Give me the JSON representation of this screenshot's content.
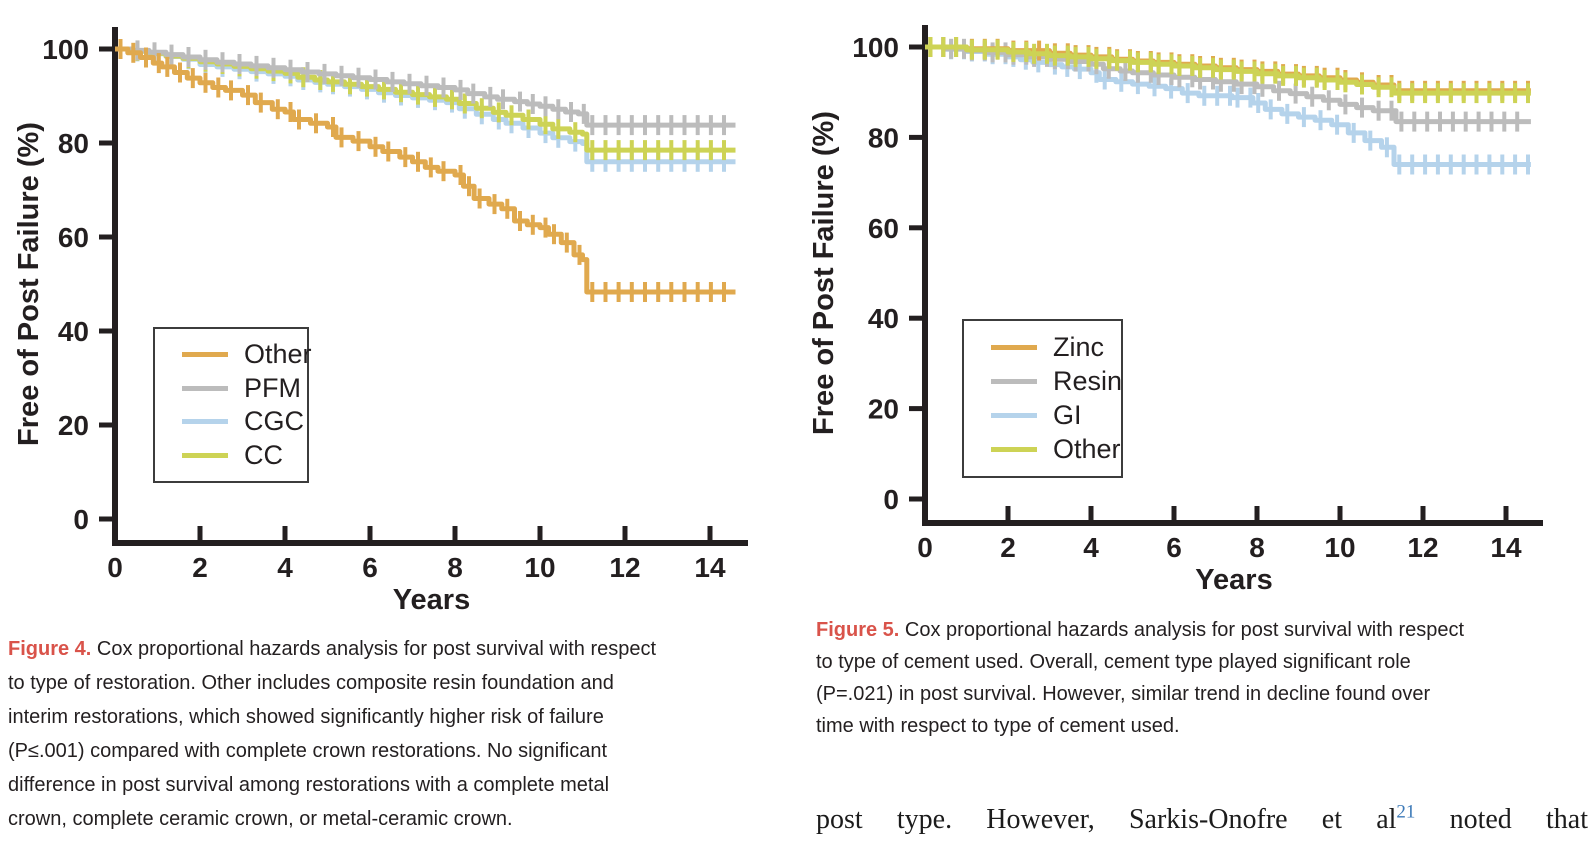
{
  "article": {
    "body_before": "post type. However, Sarkis-Onofre et al",
    "reference_superscript": "21",
    "body_after": " noted that",
    "reference_color": "#3d7ab8"
  },
  "figure4": {
    "caption_label": "Figure 4.",
    "caption_label_color": "#d9534a",
    "caption_lines": [
      " Cox proportional hazards analysis for post survival with respect",
      "to type of restoration. Other includes composite resin foundation and",
      "interim restorations, which showed significantly higher risk of failure",
      "(P≤.001) compared with complete crown restorations. No significant",
      "difference in post survival among restorations with a complete metal",
      "crown, complete ceramic crown, or metal-ceramic crown."
    ]
  },
  "figure5": {
    "caption_label": "Figure 5.",
    "caption_label_color": "#d9534a",
    "caption_lines": [
      " Cox proportional hazards analysis for post survival with respect",
      "to type of cement used. Overall, cement type played significant role",
      "(P=.021) in post survival. However, similar trend in decline found over",
      "time with respect to type of cement used."
    ]
  },
  "chart_data": [
    {
      "type": "line",
      "variant": "kaplan-meier-step-with-censor-marks",
      "figure": "Figure 4",
      "title": "",
      "xlabel": "Years",
      "ylabel": "Free of Post Failure (%)",
      "xticks": [
        0,
        2,
        4,
        6,
        8,
        10,
        12,
        14
      ],
      "yticks": [
        0,
        20,
        40,
        60,
        80,
        100
      ],
      "xlim": [
        0,
        14.8
      ],
      "ylim": [
        0,
        104
      ],
      "grid": false,
      "legend_position": "lower-left-inside",
      "series": [
        {
          "name": "Other",
          "color": "#e0a94e",
          "end_value": 48.3,
          "points": [
            [
              0,
              100
            ],
            [
              0.3,
              99.2
            ],
            [
              0.6,
              98.2
            ],
            [
              0.9,
              97
            ],
            [
              1.1,
              96.2
            ],
            [
              1.4,
              95
            ],
            [
              1.7,
              93.8
            ],
            [
              2,
              92.8
            ],
            [
              2.3,
              91.8
            ],
            [
              2.6,
              91.2
            ],
            [
              3,
              90.2
            ],
            [
              3.3,
              88.6
            ],
            [
              3.7,
              87.2
            ],
            [
              4,
              86.6
            ],
            [
              4.2,
              85
            ],
            [
              4.6,
              84.2
            ],
            [
              5,
              83.4
            ],
            [
              5.2,
              81.2
            ],
            [
              5.6,
              80.4
            ],
            [
              6,
              79.2
            ],
            [
              6.3,
              78.2
            ],
            [
              6.7,
              77
            ],
            [
              7,
              76
            ],
            [
              7.3,
              74.8
            ],
            [
              7.6,
              74
            ],
            [
              8,
              73.2
            ],
            [
              8.2,
              70.8
            ],
            [
              8.45,
              68.2
            ],
            [
              8.8,
              67
            ],
            [
              9.1,
              66
            ],
            [
              9.4,
              63.4
            ],
            [
              9.7,
              62.6
            ],
            [
              10,
              62
            ],
            [
              10.2,
              60.6
            ],
            [
              10.5,
              58.8
            ],
            [
              10.8,
              56.2
            ],
            [
              11,
              55.2
            ],
            [
              11.1,
              48.3
            ],
            [
              14.6,
              48.3
            ]
          ]
        },
        {
          "name": "PFM",
          "color": "#bcbcbc",
          "end_value": 83.8,
          "points": [
            [
              0,
              100
            ],
            [
              0.4,
              99.7
            ],
            [
              0.8,
              99.3
            ],
            [
              1.2,
              98.8
            ],
            [
              1.6,
              98.3
            ],
            [
              2,
              97.7
            ],
            [
              2.4,
              97.2
            ],
            [
              2.8,
              96.8
            ],
            [
              3.2,
              96.4
            ],
            [
              3.6,
              96
            ],
            [
              4,
              95.6
            ],
            [
              4.4,
              95.1
            ],
            [
              4.8,
              94.7
            ],
            [
              5.2,
              94.3
            ],
            [
              5.6,
              93.9
            ],
            [
              6,
              93.5
            ],
            [
              6.4,
              93
            ],
            [
              6.8,
              92.6
            ],
            [
              7.2,
              92.2
            ],
            [
              7.6,
              91.8
            ],
            [
              8,
              91.3
            ],
            [
              8.3,
              90.5
            ],
            [
              8.7,
              89.8
            ],
            [
              9,
              89.3
            ],
            [
              9.4,
              88.8
            ],
            [
              9.7,
              88.3
            ],
            [
              10,
              87.8
            ],
            [
              10.3,
              87.2
            ],
            [
              10.6,
              86.6
            ],
            [
              10.9,
              86.2
            ],
            [
              11.1,
              83.8
            ],
            [
              14.6,
              83.8
            ]
          ]
        },
        {
          "name": "CGC",
          "color": "#b5d3eb",
          "end_value": 76,
          "points": [
            [
              0,
              100
            ],
            [
              0.4,
              99.5
            ],
            [
              0.8,
              99
            ],
            [
              1.2,
              98.4
            ],
            [
              1.6,
              97.8
            ],
            [
              2,
              96.7
            ],
            [
              2.4,
              96.2
            ],
            [
              2.8,
              95.7
            ],
            [
              3.2,
              95.2
            ],
            [
              3.6,
              94.7
            ],
            [
              4,
              94.2
            ],
            [
              4.3,
              93.4
            ],
            [
              4.7,
              92.9
            ],
            [
              5,
              92.5
            ],
            [
              5.4,
              92
            ],
            [
              5.8,
              91.4
            ],
            [
              6.2,
              90.7
            ],
            [
              6.6,
              90.1
            ],
            [
              7,
              89.6
            ],
            [
              7.4,
              89.1
            ],
            [
              7.8,
              88.6
            ],
            [
              8.1,
              87.3
            ],
            [
              8.5,
              86.1
            ],
            [
              8.9,
              85
            ],
            [
              9.2,
              84.2
            ],
            [
              9.6,
              83.2
            ],
            [
              10,
              82.1
            ],
            [
              10.3,
              81.1
            ],
            [
              10.7,
              80.3
            ],
            [
              11,
              79.9
            ],
            [
              11.1,
              76
            ],
            [
              14.6,
              76
            ]
          ]
        },
        {
          "name": "CC",
          "color": "#cdd355",
          "end_value": 78.5,
          "points": [
            [
              0,
              100
            ],
            [
              0.4,
              99.6
            ],
            [
              0.8,
              99.1
            ],
            [
              1.2,
              98.5
            ],
            [
              1.6,
              98
            ],
            [
              2,
              97.3
            ],
            [
              2.4,
              96.8
            ],
            [
              2.8,
              96.3
            ],
            [
              3.2,
              95.8
            ],
            [
              3.6,
              95.3
            ],
            [
              4,
              94.8
            ],
            [
              4.3,
              94
            ],
            [
              4.7,
              93.4
            ],
            [
              5,
              93
            ],
            [
              5.4,
              92.5
            ],
            [
              5.8,
              92
            ],
            [
              6.2,
              91.4
            ],
            [
              6.6,
              90.8
            ],
            [
              7,
              90.3
            ],
            [
              7.4,
              89.8
            ],
            [
              7.8,
              89.3
            ],
            [
              8.1,
              88.4
            ],
            [
              8.5,
              87.4
            ],
            [
              8.9,
              86.5
            ],
            [
              9.2,
              85.9
            ],
            [
              9.6,
              85
            ],
            [
              10,
              84
            ],
            [
              10.3,
              83
            ],
            [
              10.7,
              82.3
            ],
            [
              11,
              81.9
            ],
            [
              11.1,
              78.5
            ],
            [
              14.6,
              78.5
            ]
          ]
        }
      ]
    },
    {
      "type": "line",
      "variant": "kaplan-meier-step-with-censor-marks",
      "figure": "Figure 5",
      "title": "",
      "xlabel": "Years",
      "ylabel": "Free of Post Failure (%)",
      "xticks": [
        0,
        2,
        4,
        6,
        8,
        10,
        12,
        14
      ],
      "yticks": [
        0,
        20,
        40,
        60,
        80,
        100
      ],
      "xlim": [
        0,
        14.8
      ],
      "ylim": [
        0,
        104
      ],
      "grid": false,
      "legend_position": "lower-left-inside",
      "series": [
        {
          "name": "Zinc",
          "color": "#e0a94e",
          "end_value": 90.3,
          "points": [
            [
              0,
              100
            ],
            [
              1,
              99.6
            ],
            [
              2,
              99.2
            ],
            [
              3,
              98.6
            ],
            [
              3.5,
              98.2
            ],
            [
              4,
              97.8
            ],
            [
              4.5,
              97.3
            ],
            [
              5,
              96.9
            ],
            [
              5.5,
              96.6
            ],
            [
              6,
              96.2
            ],
            [
              6.5,
              95.8
            ],
            [
              7,
              95.4
            ],
            [
              7.5,
              95
            ],
            [
              8,
              94.6
            ],
            [
              8.5,
              94
            ],
            [
              9,
              93.6
            ],
            [
              9.5,
              93.2
            ],
            [
              10,
              92.7
            ],
            [
              10.4,
              92.2
            ],
            [
              10.8,
              91.6
            ],
            [
              11.3,
              90.3
            ],
            [
              14.6,
              90.3
            ]
          ]
        },
        {
          "name": "Resin",
          "color": "#bcbcbc",
          "end_value": 83.5,
          "points": [
            [
              0,
              100
            ],
            [
              0.5,
              99.6
            ],
            [
              1,
              99.2
            ],
            [
              1.5,
              98.8
            ],
            [
              2,
              98.3
            ],
            [
              2.5,
              97.8
            ],
            [
              3,
              97.3
            ],
            [
              3.5,
              96.8
            ],
            [
              4,
              96.2
            ],
            [
              4.3,
              95.2
            ],
            [
              4.7,
              94.7
            ],
            [
              5,
              94.3
            ],
            [
              5.5,
              93.8
            ],
            [
              6,
              93.3
            ],
            [
              6.5,
              92.8
            ],
            [
              7,
              92.3
            ],
            [
              7.5,
              91.8
            ],
            [
              8,
              91.2
            ],
            [
              8.4,
              90.3
            ],
            [
              8.8,
              89.7
            ],
            [
              9.2,
              89
            ],
            [
              9.6,
              88.2
            ],
            [
              10,
              87.3
            ],
            [
              10.4,
              86.6
            ],
            [
              10.8,
              85.9
            ],
            [
              11.35,
              83.5
            ],
            [
              14.6,
              83.5
            ]
          ]
        },
        {
          "name": "GI",
          "color": "#b5d3eb",
          "end_value": 74,
          "points": [
            [
              0,
              100
            ],
            [
              0.5,
              99.5
            ],
            [
              1,
              99
            ],
            [
              1.5,
              98.4
            ],
            [
              2,
              97.8
            ],
            [
              2.3,
              97.2
            ],
            [
              2.6,
              96.6
            ],
            [
              3,
              96.1
            ],
            [
              3.3,
              95.6
            ],
            [
              3.6,
              95.1
            ],
            [
              4,
              94.3
            ],
            [
              4.2,
              92.8
            ],
            [
              4.6,
              92.3
            ],
            [
              5,
              91.8
            ],
            [
              5.4,
              91.3
            ],
            [
              5.8,
              90.8
            ],
            [
              6.2,
              89.8
            ],
            [
              6.6,
              89.2
            ],
            [
              7.4,
              88.8
            ],
            [
              7.9,
              87.6
            ],
            [
              8.2,
              86.2
            ],
            [
              8.6,
              85.2
            ],
            [
              9,
              84.5
            ],
            [
              9.4,
              83.8
            ],
            [
              9.8,
              82.8
            ],
            [
              10.2,
              81
            ],
            [
              10.6,
              79.3
            ],
            [
              11,
              77.8
            ],
            [
              11.3,
              74
            ],
            [
              14.6,
              74
            ]
          ]
        },
        {
          "name": "Other",
          "color": "#cdd355",
          "end_value": 89.8,
          "points": [
            [
              0,
              100
            ],
            [
              1,
              99.4
            ],
            [
              2,
              98.9
            ],
            [
              2.5,
              98.5
            ],
            [
              3,
              98.1
            ],
            [
              3.5,
              97.8
            ],
            [
              4,
              97.4
            ],
            [
              4.5,
              97
            ],
            [
              5,
              96.6
            ],
            [
              5.5,
              96.2
            ],
            [
              6,
              95.8
            ],
            [
              6.5,
              95.4
            ],
            [
              7,
              95
            ],
            [
              7.5,
              94.6
            ],
            [
              8,
              94.1
            ],
            [
              8.5,
              93.6
            ],
            [
              9,
              93.2
            ],
            [
              9.5,
              92.7
            ],
            [
              10,
              92.2
            ],
            [
              10.4,
              91.7
            ],
            [
              10.8,
              91.1
            ],
            [
              11.3,
              89.8
            ],
            [
              14.6,
              89.8
            ]
          ]
        }
      ]
    }
  ]
}
